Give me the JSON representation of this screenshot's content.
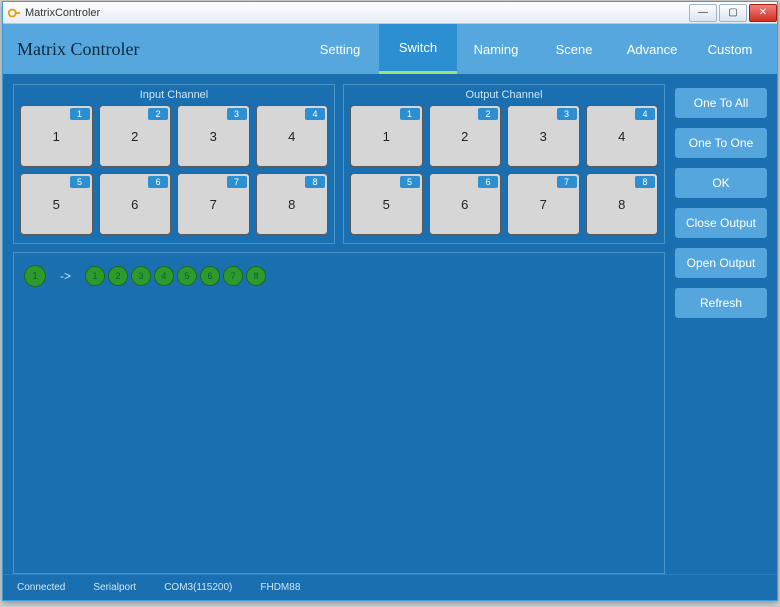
{
  "window": {
    "title": "MatrixControler"
  },
  "app_title": "Matrix Controler",
  "tabs": [
    {
      "label": "Setting",
      "active": false
    },
    {
      "label": "Switch",
      "active": true
    },
    {
      "label": "Naming",
      "active": false
    },
    {
      "label": "Scene",
      "active": false
    },
    {
      "label": "Advance",
      "active": false
    },
    {
      "label": "Custom",
      "active": false
    }
  ],
  "input_channel": {
    "title": "Input Channel",
    "items": [
      {
        "badge": "1",
        "label": "1"
      },
      {
        "badge": "2",
        "label": "2"
      },
      {
        "badge": "3",
        "label": "3"
      },
      {
        "badge": "4",
        "label": "4"
      },
      {
        "badge": "5",
        "label": "5"
      },
      {
        "badge": "6",
        "label": "6"
      },
      {
        "badge": "7",
        "label": "7"
      },
      {
        "badge": "8",
        "label": "8"
      }
    ]
  },
  "output_channel": {
    "title": "Output Channel",
    "items": [
      {
        "badge": "1",
        "label": "1"
      },
      {
        "badge": "2",
        "label": "2"
      },
      {
        "badge": "3",
        "label": "3"
      },
      {
        "badge": "4",
        "label": "4"
      },
      {
        "badge": "5",
        "label": "5"
      },
      {
        "badge": "6",
        "label": "6"
      },
      {
        "badge": "7",
        "label": "7"
      },
      {
        "badge": "8",
        "label": "8"
      }
    ]
  },
  "mapping": {
    "source": "1",
    "arrow": "->",
    "targets": [
      "1",
      "2",
      "3",
      "4",
      "5",
      "6",
      "7",
      "8"
    ]
  },
  "side_buttons": [
    "One To All",
    "One To One",
    "OK",
    "Close Output",
    "Open Output",
    "Refresh"
  ],
  "status": {
    "connection": "Connected",
    "port_type": "Serialport",
    "port_detail": "COM3(115200)",
    "device": "FHDM88"
  },
  "colors": {
    "header_bg": "#56a7dd",
    "body_bg": "#1a6fb0",
    "accent": "#2c8fd2",
    "tab_underline": "#9ee27a",
    "channel_btn_bg": "#d6d6d6",
    "circle_bg": "#2e9a2e",
    "side_btn_bg": "#55a6dc"
  }
}
